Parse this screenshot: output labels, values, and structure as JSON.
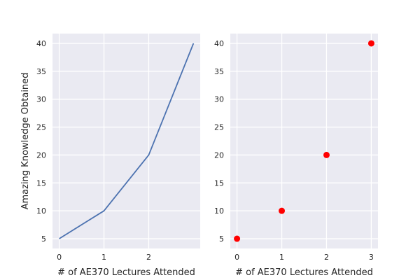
{
  "chart_data": [
    {
      "type": "line",
      "x": [
        0,
        1,
        2,
        3
      ],
      "series": [
        {
          "values": [
            5,
            10,
            20,
            40
          ],
          "color": "#4c72b0"
        }
      ],
      "xlabel": "# of AE370 Lectures Attended",
      "ylabel": "Amazing Knowledge Obtained",
      "xticks": [
        "0",
        "1",
        "2"
      ],
      "yticks": [
        "5",
        "10",
        "15",
        "20",
        "25",
        "30",
        "35",
        "40"
      ],
      "xlim": [
        -0.15,
        3.15
      ],
      "ylim": [
        3.25,
        41.75
      ],
      "grid": true,
      "background": "#eaeaf2"
    },
    {
      "type": "scatter",
      "x": [
        0,
        1,
        2,
        3
      ],
      "series": [
        {
          "values": [
            5,
            10,
            20,
            40
          ],
          "color": "#ff0000"
        }
      ],
      "xlabel": "# of AE370 Lectures Attended",
      "ylabel": "",
      "xticks": [
        "0",
        "1",
        "2",
        "3"
      ],
      "yticks": [
        "5",
        "10",
        "15",
        "20",
        "25",
        "30",
        "35",
        "40"
      ],
      "xlim": [
        -0.15,
        3.15
      ],
      "ylim": [
        3.25,
        41.75
      ],
      "grid": true,
      "background": "#eaeaf2"
    }
  ]
}
